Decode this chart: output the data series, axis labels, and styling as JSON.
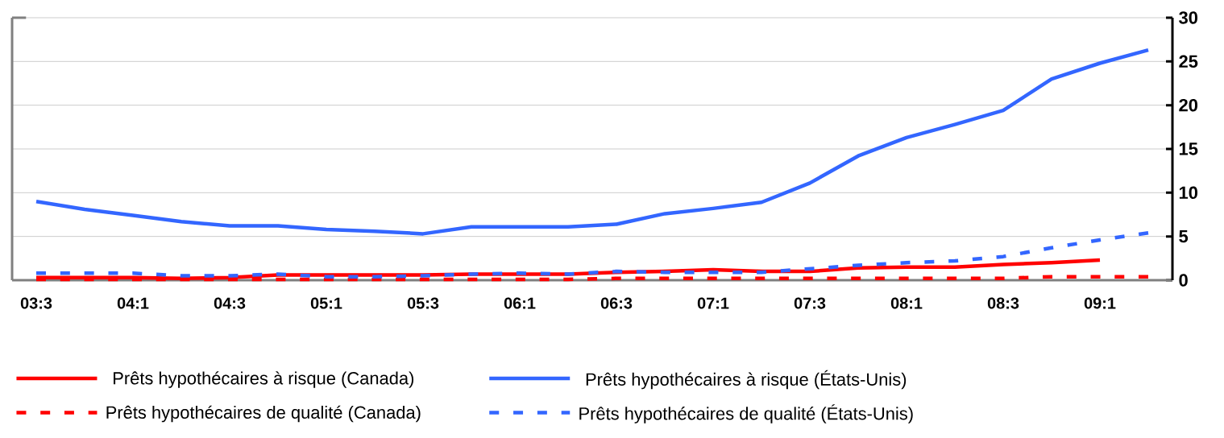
{
  "chart_data": {
    "type": "line",
    "categories": [
      "03:3",
      null,
      "04:1",
      null,
      "04:3",
      null,
      "05:1",
      null,
      "05:3",
      null,
      "06:1",
      null,
      "06:3",
      null,
      "07:1",
      null,
      "07:3",
      null,
      "08:1",
      null,
      "08:3",
      null,
      "09:1",
      null
    ],
    "series": [
      {
        "name": "Prêts hypothécaires à risque (Canada)",
        "color": "#ff0000",
        "line_style": "solid",
        "values": [
          0.3,
          0.3,
          0.3,
          0.2,
          0.3,
          0.6,
          0.6,
          0.6,
          0.6,
          0.7,
          0.7,
          0.7,
          0.9,
          1.0,
          1.2,
          1.0,
          1.0,
          1.4,
          1.5,
          1.5,
          1.8,
          2.0,
          2.3,
          null
        ]
      },
      {
        "name": "Prêts hypothécaires à risque (États-Unis)",
        "color": "#3366ff",
        "line_style": "solid",
        "values": [
          9.0,
          8.1,
          7.4,
          6.7,
          6.2,
          6.2,
          5.8,
          5.6,
          5.3,
          6.1,
          6.1,
          6.1,
          6.4,
          7.6,
          8.2,
          8.9,
          11.1,
          14.2,
          16.3,
          17.8,
          19.4,
          23.0,
          24.8,
          26.3
        ]
      },
      {
        "name": "Prêts hypothécaires de qualité (Canada)",
        "color": "#ff0000",
        "line_style": "dashed",
        "values": [
          0.1,
          0.1,
          0.1,
          0.1,
          0.1,
          0.1,
          0.1,
          0.1,
          0.1,
          0.1,
          0.1,
          0.1,
          0.2,
          0.2,
          0.2,
          0.2,
          0.2,
          0.2,
          0.2,
          0.2,
          0.2,
          0.4,
          0.4,
          0.4
        ]
      },
      {
        "name": "Prêts hypothécaires de qualité (États-Unis)",
        "color": "#3366ff",
        "line_style": "dashed",
        "values": [
          0.8,
          0.8,
          0.8,
          0.5,
          0.5,
          0.7,
          0.4,
          0.4,
          0.5,
          0.7,
          0.8,
          0.7,
          1.0,
          0.9,
          0.9,
          0.9,
          1.3,
          1.7,
          2.0,
          2.2,
          2.7,
          3.7,
          4.6,
          5.4
        ]
      }
    ],
    "ylim": [
      0,
      30
    ],
    "yticks": [
      0,
      5,
      10,
      15,
      20,
      25,
      30
    ],
    "grid": "y",
    "legend": "bottom",
    "marker": "none"
  }
}
